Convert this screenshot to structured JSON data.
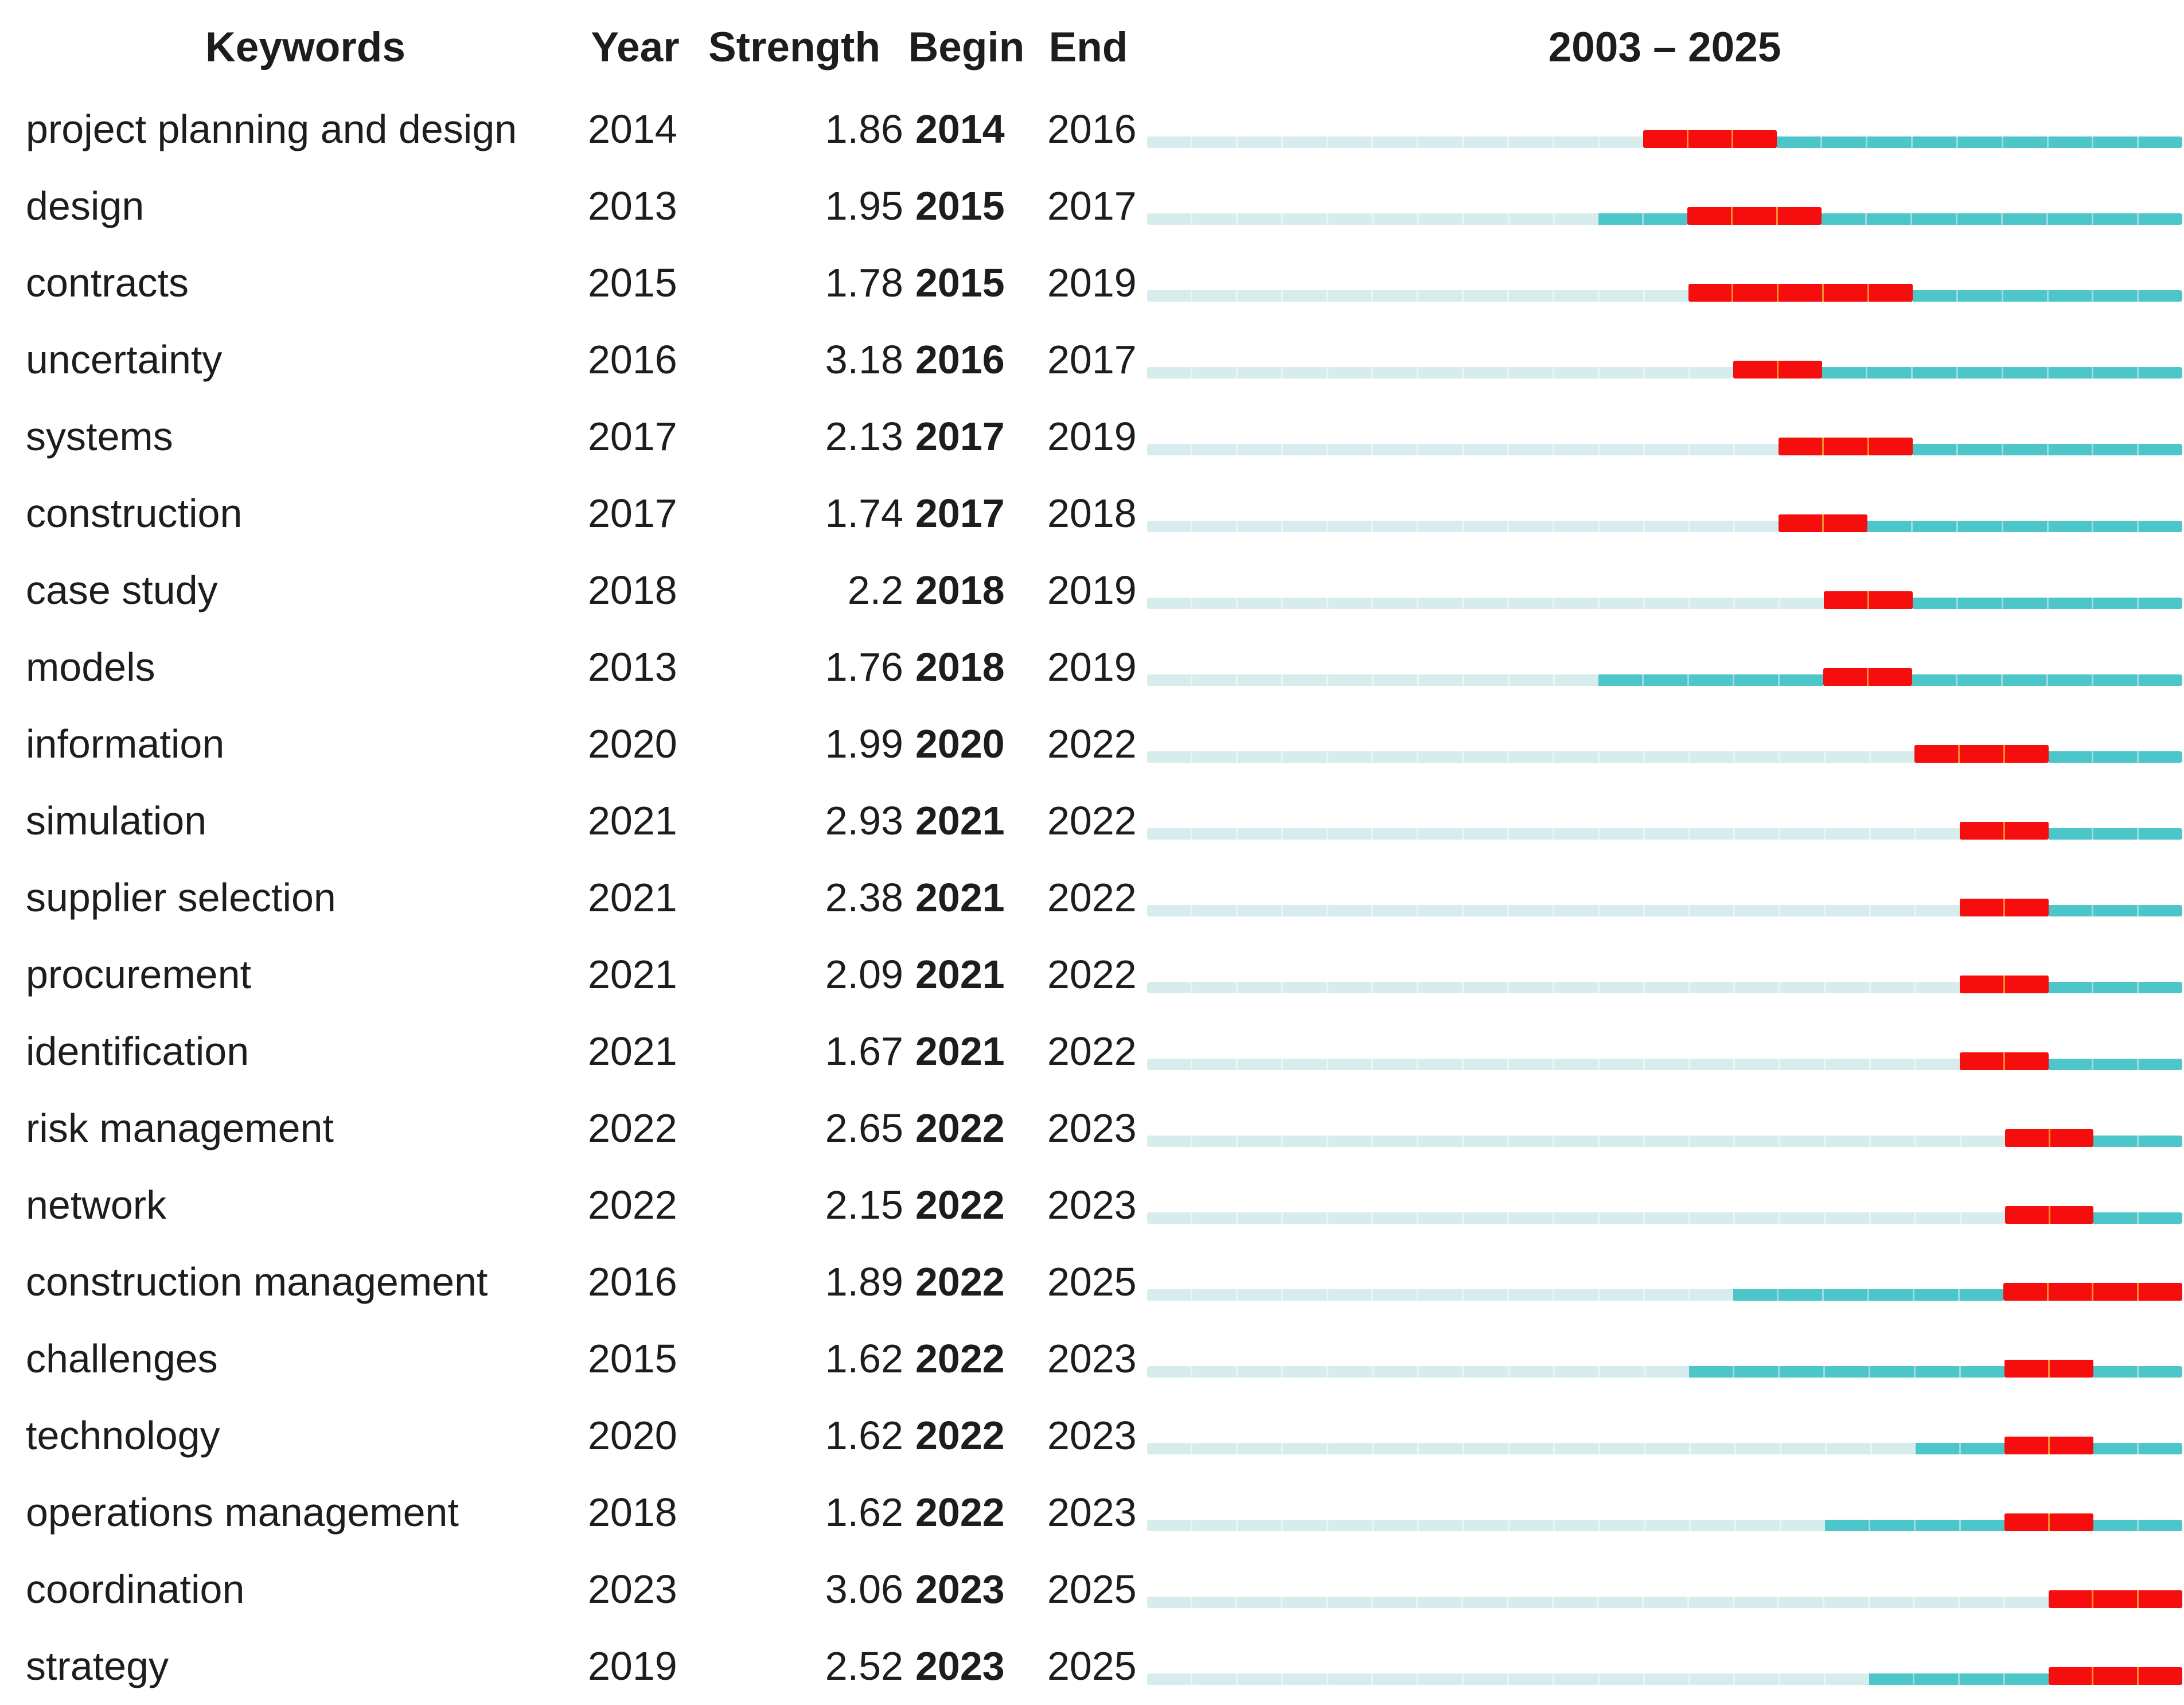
{
  "header": {
    "keywords": "Keywords",
    "year": "Year",
    "strength": "Strength",
    "begin": "Begin",
    "end": "End",
    "range_label": "2003 – 2025"
  },
  "colors": {
    "burst_red": "#f60d0d",
    "burst_divider_orange": "#ff8f2b",
    "active_teal": "#4cc6c9",
    "active_divider": "#9edcde",
    "inactive_pale": "#d7eded",
    "text": "#1d1d1d",
    "background": "#ffffff"
  },
  "chart_data": {
    "type": "table",
    "columns": [
      "Keywords",
      "Year",
      "Strength",
      "Begin",
      "End"
    ],
    "timeline": {
      "start": 2003,
      "end": 2025,
      "label": "2003 – 2025"
    },
    "bar_encoding": {
      "inactive": "years before first appearance (Year)",
      "active": "years from first appearance, outside burst",
      "burst": "burst period from Begin to End inclusive"
    },
    "rows": [
      {
        "keyword": "project planning and design",
        "year": 2014,
        "strength": "1.86",
        "begin": 2014,
        "end": 2016
      },
      {
        "keyword": "design",
        "year": 2013,
        "strength": "1.95",
        "begin": 2015,
        "end": 2017
      },
      {
        "keyword": "contracts",
        "year": 2015,
        "strength": "1.78",
        "begin": 2015,
        "end": 2019
      },
      {
        "keyword": "uncertainty",
        "year": 2016,
        "strength": "3.18",
        "begin": 2016,
        "end": 2017
      },
      {
        "keyword": "systems",
        "year": 2017,
        "strength": "2.13",
        "begin": 2017,
        "end": 2019
      },
      {
        "keyword": "construction",
        "year": 2017,
        "strength": "1.74",
        "begin": 2017,
        "end": 2018
      },
      {
        "keyword": "case study",
        "year": 2018,
        "strength": "2.2",
        "begin": 2018,
        "end": 2019
      },
      {
        "keyword": "models",
        "year": 2013,
        "strength": "1.76",
        "begin": 2018,
        "end": 2019
      },
      {
        "keyword": "information",
        "year": 2020,
        "strength": "1.99",
        "begin": 2020,
        "end": 2022
      },
      {
        "keyword": "simulation",
        "year": 2021,
        "strength": "2.93",
        "begin": 2021,
        "end": 2022
      },
      {
        "keyword": "supplier selection",
        "year": 2021,
        "strength": "2.38",
        "begin": 2021,
        "end": 2022
      },
      {
        "keyword": "procurement",
        "year": 2021,
        "strength": "2.09",
        "begin": 2021,
        "end": 2022
      },
      {
        "keyword": "identification",
        "year": 2021,
        "strength": "1.67",
        "begin": 2021,
        "end": 2022
      },
      {
        "keyword": "risk management",
        "year": 2022,
        "strength": "2.65",
        "begin": 2022,
        "end": 2023
      },
      {
        "keyword": "network",
        "year": 2022,
        "strength": "2.15",
        "begin": 2022,
        "end": 2023
      },
      {
        "keyword": "construction management",
        "year": 2016,
        "strength": "1.89",
        "begin": 2022,
        "end": 2025
      },
      {
        "keyword": "challenges",
        "year": 2015,
        "strength": "1.62",
        "begin": 2022,
        "end": 2023
      },
      {
        "keyword": "technology",
        "year": 2020,
        "strength": "1.62",
        "begin": 2022,
        "end": 2023
      },
      {
        "keyword": "operations management",
        "year": 2018,
        "strength": "1.62",
        "begin": 2022,
        "end": 2023
      },
      {
        "keyword": "coordination",
        "year": 2023,
        "strength": "3.06",
        "begin": 2023,
        "end": 2025
      },
      {
        "keyword": "strategy",
        "year": 2019,
        "strength": "2.52",
        "begin": 2023,
        "end": 2025
      }
    ]
  }
}
